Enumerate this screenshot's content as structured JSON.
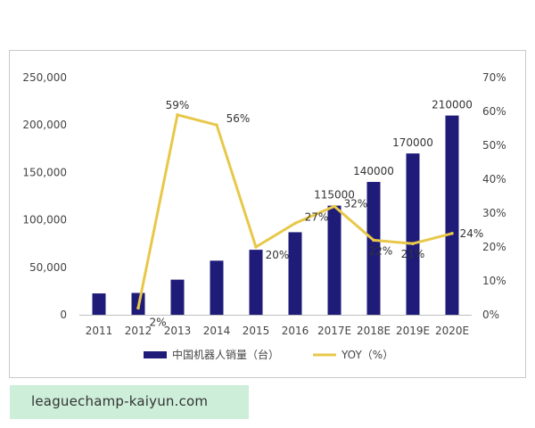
{
  "chart_data": {
    "type": "bar",
    "categories": [
      "2011",
      "2012",
      "2013",
      "2014",
      "2015",
      "2016",
      "2017E",
      "2018E",
      "2019E",
      "2020E"
    ],
    "series": [
      {
        "name": "中国机器人销量（台）",
        "type": "bar",
        "axis": "left",
        "color": "#1f1b78",
        "values": [
          22500,
          23000,
          37000,
          57000,
          68500,
          87000,
          115000,
          140000,
          170000,
          210000
        ],
        "data_labels": [
          "",
          "",
          "",
          "",
          "",
          "",
          "115000",
          "140000",
          "170000",
          "210000"
        ]
      },
      {
        "name": "YOY（%）",
        "type": "line",
        "axis": "right",
        "color": "#e8c84a",
        "values": [
          null,
          2,
          59,
          56,
          20,
          27,
          32,
          22,
          21,
          24
        ],
        "data_labels": [
          "",
          "2%",
          "59%",
          "56%",
          "20%",
          "27%",
          "32%",
          "22%",
          "21%",
          "24%"
        ]
      }
    ],
    "y_left": {
      "min": 0,
      "max": 250000,
      "ticks": [
        "0",
        "50,000",
        "100,000",
        "150,000",
        "200,000",
        "250,000"
      ]
    },
    "y_right": {
      "min": 0,
      "max": 70,
      "ticks": [
        "0%",
        "10%",
        "20%",
        "30%",
        "40%",
        "50%",
        "60%",
        "70%"
      ]
    },
    "grid": false,
    "legend_position": "bottom"
  },
  "watermark": {
    "text": "leaguechamp-kaiyun.com"
  }
}
